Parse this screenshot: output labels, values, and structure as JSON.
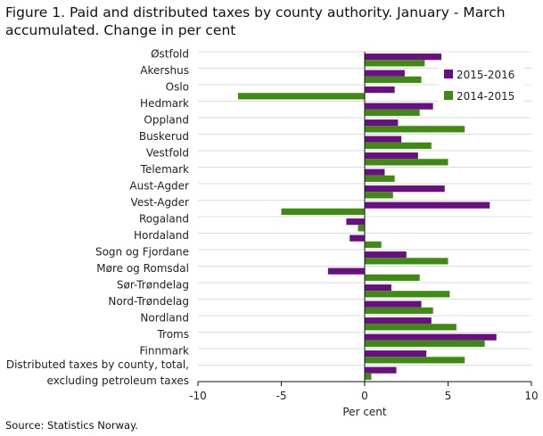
{
  "title": "Figure 1. Paid and distributed taxes by county authority. January - March accumulated. Change in per cent",
  "source": "Source: Statistics Norway.",
  "chart_data": {
    "type": "bar",
    "orientation": "horizontal",
    "title": "Figure 1. Paid and distributed taxes by county authority. January - March accumulated. Change in per cent",
    "xlabel": "Per cent",
    "ylabel": "",
    "xlim": [
      -10,
      10
    ],
    "xticks": [
      -10,
      -5,
      0,
      5,
      10
    ],
    "xtick_labels": [
      "-10",
      "-5",
      "0",
      "5",
      "10"
    ],
    "grid": true,
    "legend_position": "top-right",
    "categories": [
      [
        "Østfold"
      ],
      [
        "Akershus"
      ],
      [
        "Oslo"
      ],
      [
        "Hedmark"
      ],
      [
        "Oppland"
      ],
      [
        "Buskerud"
      ],
      [
        "Vestfold"
      ],
      [
        "Telemark"
      ],
      [
        "Aust-Agder"
      ],
      [
        "Vest-Agder"
      ],
      [
        "Rogaland"
      ],
      [
        "Hordaland"
      ],
      [
        "Sogn og Fjordane"
      ],
      [
        "Møre og Romsdal"
      ],
      [
        "Sør-Trøndelag"
      ],
      [
        "Nord-Trøndelag"
      ],
      [
        "Nordland"
      ],
      [
        "Troms"
      ],
      [
        "Finnmark"
      ],
      [
        "Distributed taxes by county, total,",
        "excluding petroleum taxes"
      ]
    ],
    "series": [
      {
        "name": "2015-2016",
        "color": "#6a0f82",
        "values": [
          4.6,
          2.4,
          1.8,
          4.1,
          2.0,
          2.2,
          3.2,
          1.2,
          4.8,
          7.5,
          -1.1,
          -0.9,
          2.5,
          -2.2,
          1.6,
          3.4,
          4.0,
          7.9,
          3.7,
          1.9
        ]
      },
      {
        "name": "2014-2015",
        "color": "#3f8a12",
        "values": [
          3.6,
          3.4,
          -7.6,
          3.3,
          6.0,
          4.0,
          5.0,
          1.8,
          1.7,
          -5.0,
          -0.4,
          1.0,
          5.0,
          3.3,
          5.1,
          4.1,
          5.5,
          7.2,
          6.0,
          0.4
        ]
      }
    ]
  }
}
